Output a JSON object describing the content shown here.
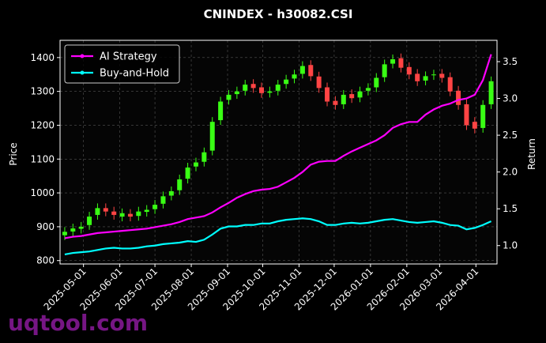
{
  "chart_data": {
    "type": "candlestick",
    "title": "CNINDEX - h30082.CSI",
    "y_label": "Price",
    "y2_label": "Return",
    "watermark": "uqtool.com",
    "x": [
      "2025-04-15",
      "2025-04-22",
      "2025-04-29",
      "2025-05-06",
      "2025-05-13",
      "2025-05-20",
      "2025-05-27",
      "2025-06-03",
      "2025-06-10",
      "2025-06-17",
      "2025-06-24",
      "2025-07-01",
      "2025-07-08",
      "2025-07-15",
      "2025-07-22",
      "2025-07-29",
      "2025-08-05",
      "2025-08-12",
      "2025-08-19",
      "2025-08-26",
      "2025-09-02",
      "2025-09-09",
      "2025-09-16",
      "2025-09-23",
      "2025-09-30",
      "2025-10-07",
      "2025-10-14",
      "2025-10-21",
      "2025-10-28",
      "2025-11-04",
      "2025-11-11",
      "2025-11-18",
      "2025-11-25",
      "2025-12-02",
      "2025-12-09",
      "2025-12-16",
      "2025-12-23",
      "2025-12-30",
      "2026-01-06",
      "2026-01-13",
      "2026-01-20",
      "2026-01-27",
      "2026-02-03",
      "2026-02-10",
      "2026-02-17",
      "2026-02-24",
      "2026-03-03",
      "2026-03-10",
      "2026-03-17",
      "2026-03-24",
      "2026-03-31",
      "2026-04-07",
      "2026-04-14"
    ],
    "open": [
      875,
      886,
      894,
      905,
      935,
      955,
      945,
      930,
      938,
      932,
      944,
      952,
      968,
      992,
      1008,
      1042,
      1078,
      1092,
      1125,
      1215,
      1275,
      1292,
      1302,
      1322,
      1312,
      1296,
      1302,
      1322,
      1338,
      1352,
      1378,
      1344,
      1312,
      1272,
      1262,
      1292,
      1282,
      1302,
      1312,
      1342,
      1382,
      1398,
      1372,
      1352,
      1332,
      1348,
      1352,
      1342,
      1302,
      1262,
      1210,
      1192,
      1262
    ],
    "high": [
      899,
      909,
      914,
      944,
      969,
      969,
      959,
      954,
      952,
      959,
      964,
      979,
      1004,
      1019,
      1054,
      1089,
      1104,
      1134,
      1224,
      1284,
      1304,
      1314,
      1334,
      1336,
      1326,
      1314,
      1334,
      1349,
      1364,
      1389,
      1392,
      1358,
      1326,
      1286,
      1304,
      1306,
      1314,
      1324,
      1354,
      1394,
      1409,
      1412,
      1386,
      1366,
      1359,
      1364,
      1366,
      1356,
      1316,
      1276,
      1224,
      1274,
      1344
    ],
    "low": [
      861,
      872,
      880,
      891,
      921,
      931,
      921,
      916,
      916,
      918,
      930,
      938,
      954,
      978,
      994,
      1028,
      1064,
      1078,
      1111,
      1201,
      1261,
      1278,
      1288,
      1296,
      1281,
      1282,
      1288,
      1308,
      1324,
      1338,
      1331,
      1296,
      1256,
      1246,
      1248,
      1266,
      1268,
      1288,
      1298,
      1328,
      1368,
      1356,
      1336,
      1316,
      1318,
      1334,
      1326,
      1286,
      1246,
      1186,
      1176,
      1178,
      1248
    ],
    "close": [
      885,
      895,
      900,
      930,
      955,
      945,
      935,
      940,
      930,
      945,
      950,
      965,
      990,
      1005,
      1040,
      1075,
      1090,
      1120,
      1210,
      1270,
      1290,
      1300,
      1320,
      1310,
      1295,
      1300,
      1320,
      1335,
      1350,
      1375,
      1345,
      1310,
      1270,
      1260,
      1290,
      1280,
      1300,
      1310,
      1340,
      1380,
      1395,
      1370,
      1350,
      1330,
      1345,
      1350,
      1340,
      1300,
      1260,
      1200,
      1190,
      1260,
      1330
    ],
    "up_color": "#39ff14",
    "down_color": "#ff4444",
    "series": [
      {
        "name": "AI Strategy",
        "color": "#ff00ff",
        "axis": "y2",
        "values": [
          1.1,
          1.12,
          1.13,
          1.15,
          1.17,
          1.18,
          1.19,
          1.2,
          1.21,
          1.22,
          1.23,
          1.25,
          1.27,
          1.29,
          1.32,
          1.36,
          1.38,
          1.4,
          1.45,
          1.52,
          1.58,
          1.65,
          1.7,
          1.74,
          1.76,
          1.77,
          1.8,
          1.86,
          1.92,
          2.0,
          2.1,
          2.14,
          2.15,
          2.15,
          2.22,
          2.28,
          2.33,
          2.38,
          2.43,
          2.5,
          2.6,
          2.65,
          2.68,
          2.68,
          2.78,
          2.85,
          2.9,
          2.93,
          2.98,
          3.0,
          3.05,
          3.25,
          3.6
        ]
      },
      {
        "name": "Buy-and-Hold",
        "color": "#00ffff",
        "axis": "y2",
        "values": [
          0.88,
          0.9,
          0.91,
          0.92,
          0.94,
          0.96,
          0.97,
          0.96,
          0.96,
          0.97,
          0.99,
          1.0,
          1.02,
          1.03,
          1.04,
          1.06,
          1.05,
          1.08,
          1.15,
          1.23,
          1.26,
          1.26,
          1.28,
          1.28,
          1.3,
          1.3,
          1.33,
          1.35,
          1.36,
          1.37,
          1.36,
          1.33,
          1.28,
          1.28,
          1.3,
          1.31,
          1.3,
          1.31,
          1.33,
          1.35,
          1.36,
          1.34,
          1.32,
          1.31,
          1.32,
          1.33,
          1.31,
          1.28,
          1.27,
          1.22,
          1.24,
          1.28,
          1.33
        ]
      }
    ],
    "xlim": [
      "2025-04-11",
      "2026-04-19"
    ],
    "xticks": [
      "2025-05-01",
      "2025-06-01",
      "2025-07-01",
      "2025-08-01",
      "2025-09-01",
      "2025-10-01",
      "2025-11-01",
      "2025-12-01",
      "2026-01-01",
      "2026-02-01",
      "2026-03-01",
      "2026-04-01"
    ],
    "ylim": [
      790,
      1451
    ],
    "yticks": [
      800,
      900,
      1000,
      1100,
      1200,
      1300,
      1400
    ],
    "y2lim": [
      0.75,
      3.79
    ],
    "y2ticks": [
      {
        "value": 1,
        "label": "1.0"
      },
      1.5,
      {
        "value": 2,
        "label": "2.0"
      },
      2.5,
      {
        "value": 3,
        "label": "3.0"
      },
      3.5
    ],
    "grid": true,
    "legend": "upper left"
  }
}
